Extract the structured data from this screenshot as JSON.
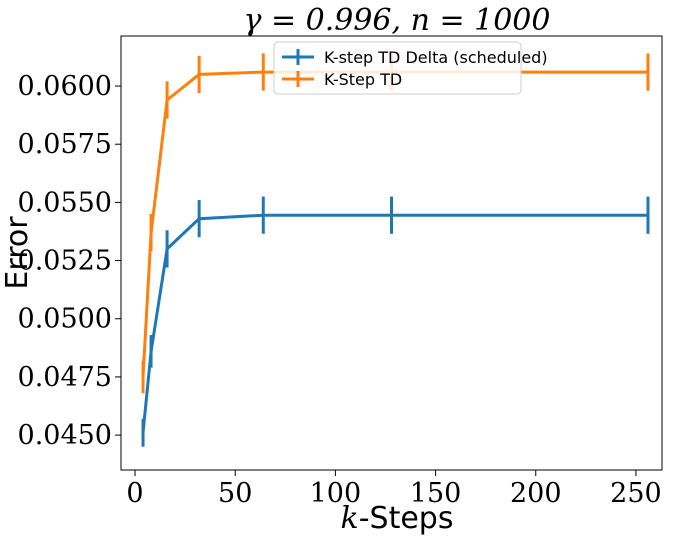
{
  "chart_data": {
    "type": "line",
    "title": "γ = 0.996, n = 1000",
    "xlabel": {
      "var": "k",
      "suffix": "-Steps"
    },
    "ylabel": "Error",
    "xlim": [
      -7,
      263
    ],
    "ylim": [
      0.0435,
      0.06215
    ],
    "xticks": [
      0,
      50,
      100,
      150,
      200,
      250
    ],
    "yticks": [
      0.045,
      0.0475,
      0.05,
      0.0525,
      0.055,
      0.0575,
      0.06
    ],
    "ytick_labels": [
      "0.0450",
      "0.0475",
      "0.0500",
      "0.0525",
      "0.0550",
      "0.0575",
      "0.0600"
    ],
    "legend": {
      "placement": "top-center"
    },
    "series": [
      {
        "name": "K-step TD Delta (scheduled)",
        "color": "#1f77b4",
        "x": [
          4,
          8,
          16,
          32,
          64,
          128,
          256
        ],
        "y": [
          0.0451,
          0.0486,
          0.053,
          0.0543,
          0.05445,
          0.05445,
          0.05445
        ],
        "yerr": [
          0.0006,
          0.0007,
          0.0008,
          0.0008,
          0.0008,
          0.0008,
          0.0008
        ]
      },
      {
        "name": "K-Step TD",
        "color": "#ff7f0e",
        "x": [
          4,
          8,
          16,
          32,
          64,
          128,
          256
        ],
        "y": [
          0.0475,
          0.0537,
          0.0594,
          0.0605,
          0.0606,
          0.0606,
          0.0606
        ],
        "yerr": [
          0.0007,
          0.0008,
          0.0008,
          0.0008,
          0.0008,
          0.0008,
          0.0008
        ]
      }
    ]
  }
}
